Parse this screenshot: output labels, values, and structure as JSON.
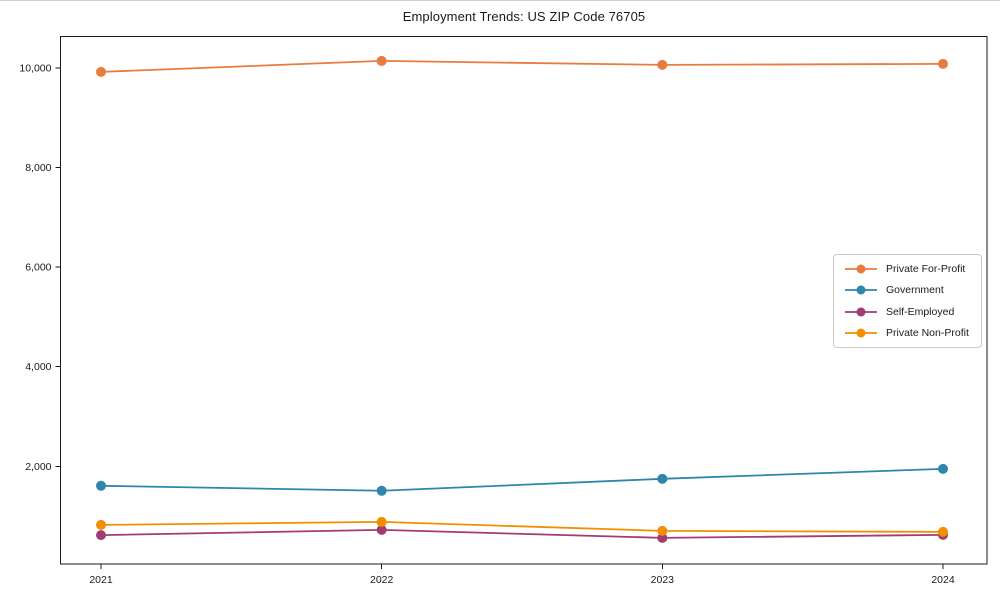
{
  "chart_data": {
    "type": "line",
    "title": "Employment Trends: US ZIP Code 76705",
    "categories": [
      "2021",
      "2022",
      "2023",
      "2024"
    ],
    "xlabel": "",
    "ylabel": "",
    "ylim": [
      40,
      10630
    ],
    "yticks": [
      2000,
      4000,
      6000,
      8000,
      10000
    ],
    "ytick_labels": [
      "2,000",
      "4,000",
      "6,000",
      "8,000",
      "10,000"
    ],
    "grid": false,
    "legend_position": "center right",
    "series": [
      {
        "name": "Private For-Profit",
        "color": "#E87C3E",
        "values": [
          9920,
          10140,
          10060,
          10080
        ]
      },
      {
        "name": "Government",
        "color": "#2E86AB",
        "values": [
          1610,
          1510,
          1750,
          1950
        ]
      },
      {
        "name": "Self-Employed",
        "color": "#A23B72",
        "values": [
          620,
          725,
          565,
          625
        ]
      },
      {
        "name": "Private Non-Profit",
        "color": "#F18F01",
        "values": [
          825,
          885,
          705,
          685
        ]
      }
    ]
  }
}
